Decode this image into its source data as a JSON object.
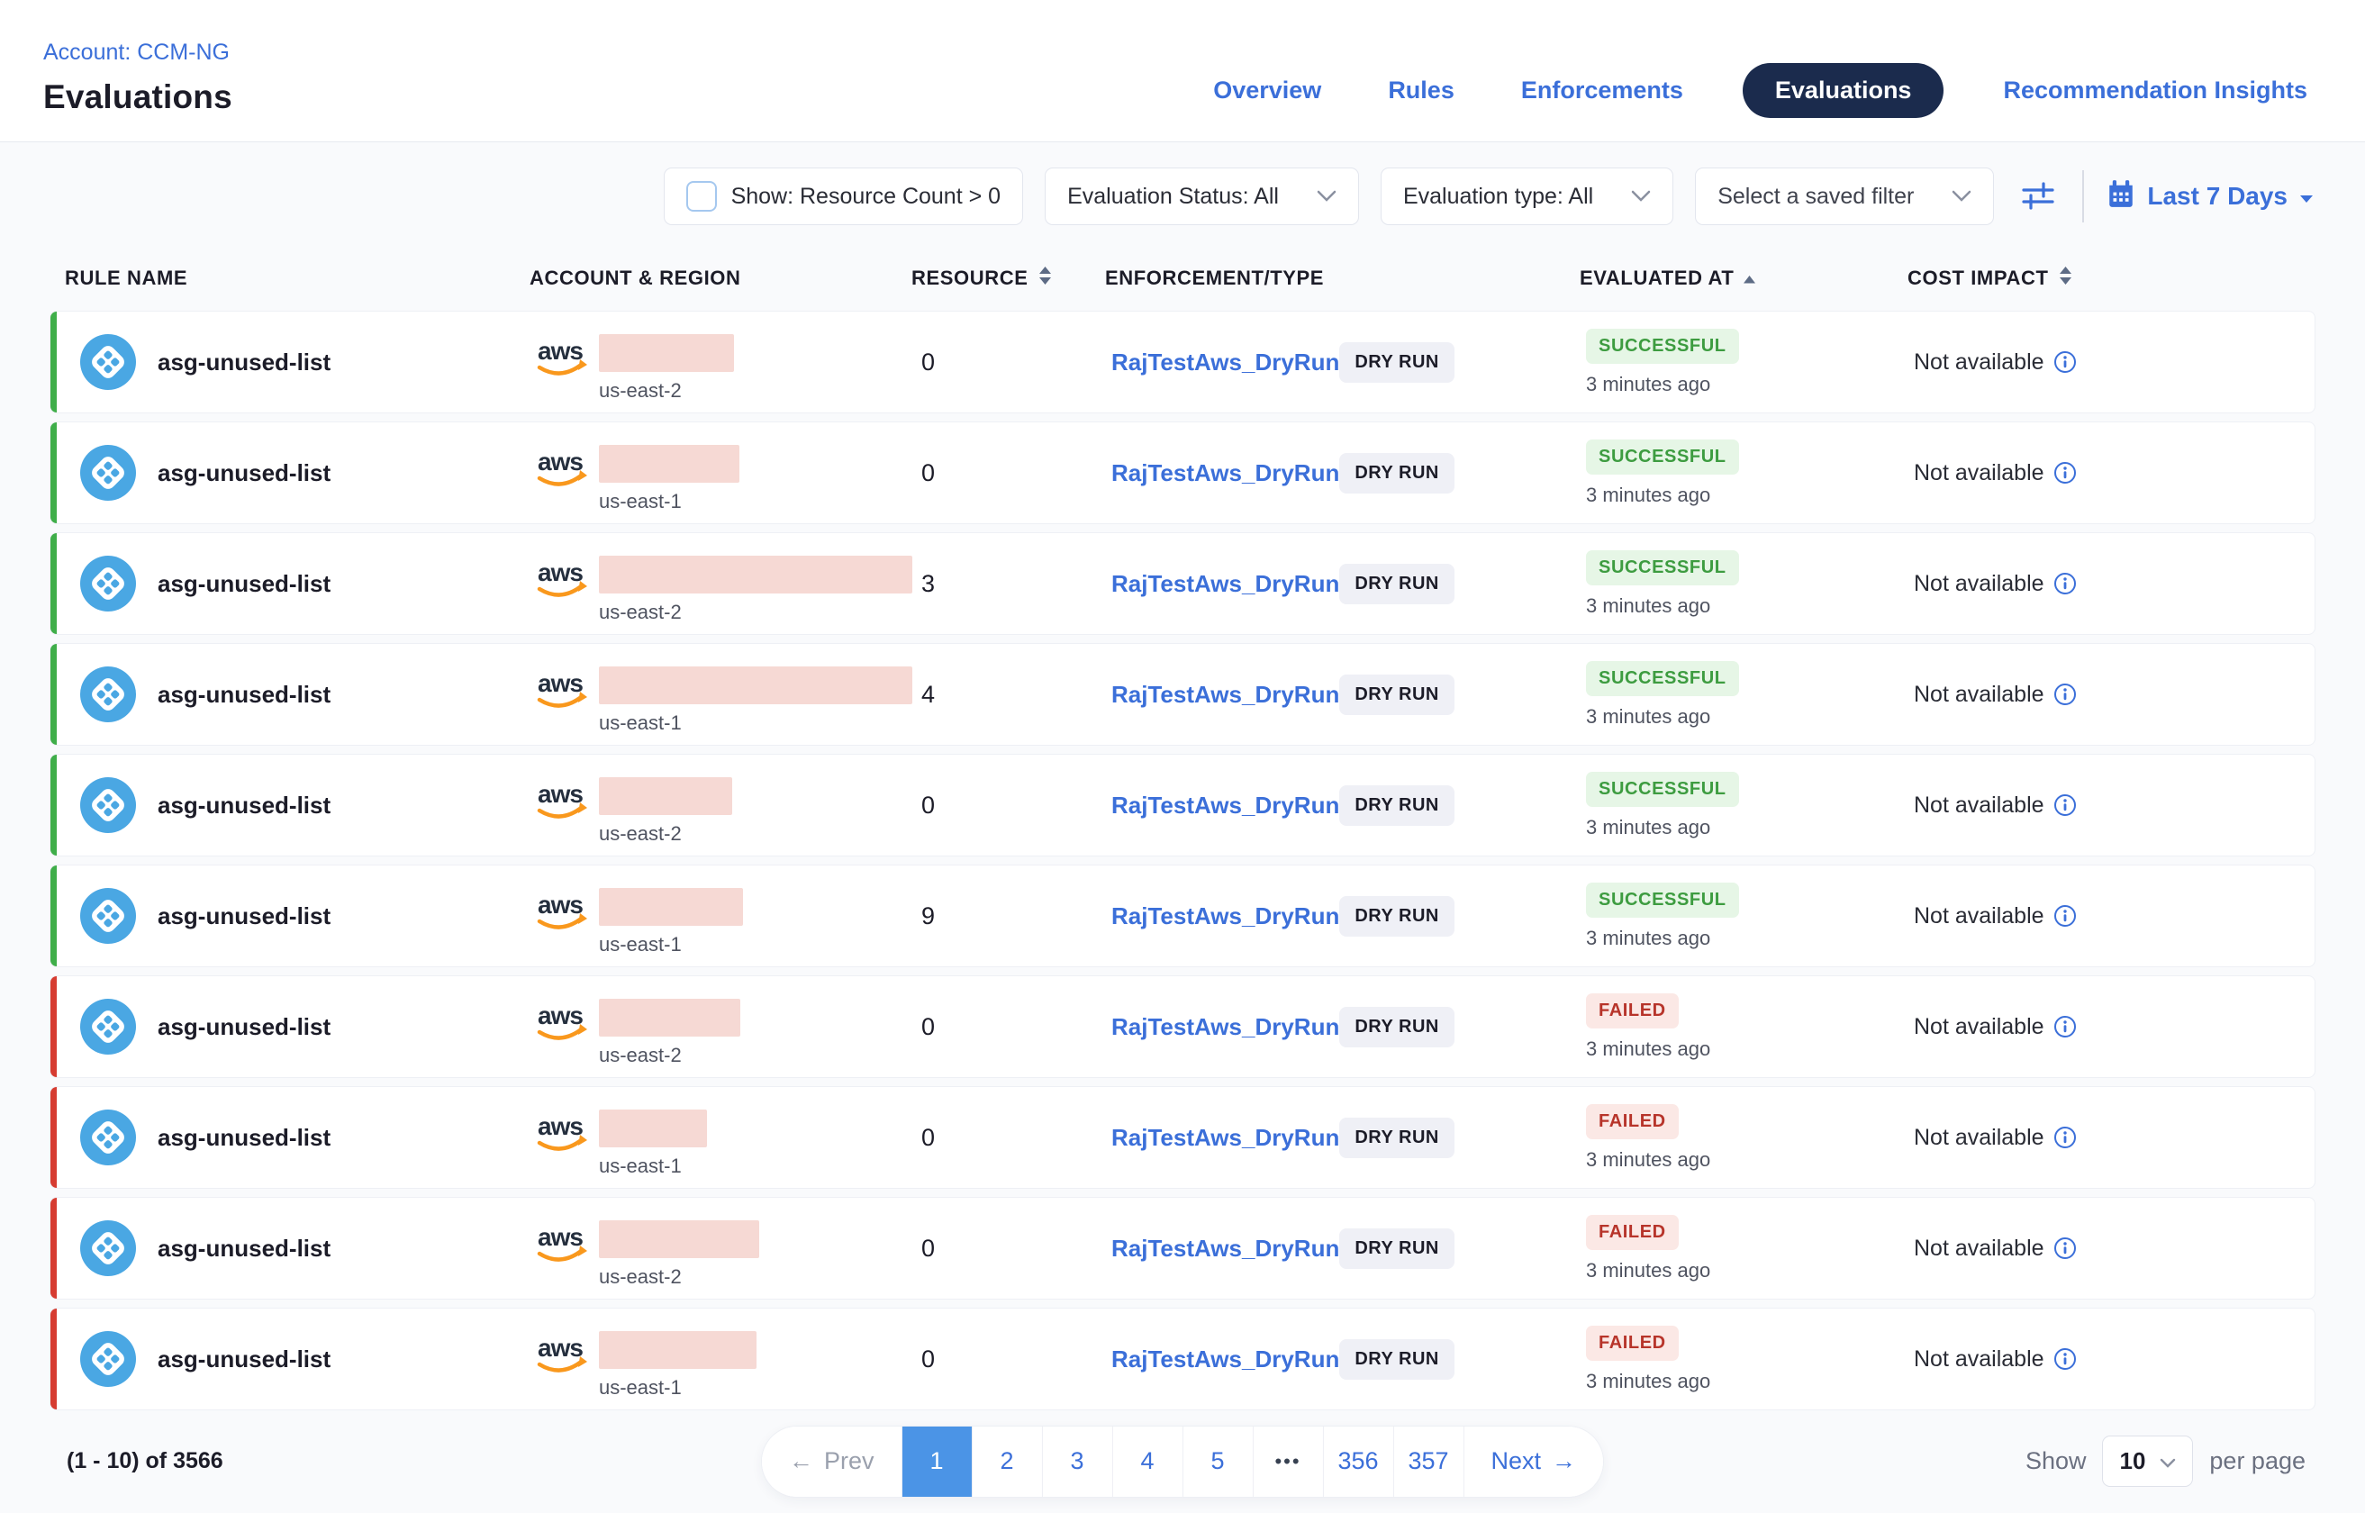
{
  "header": {
    "account_label": "Account: CCM-NG",
    "title": "Evaluations",
    "nav": [
      {
        "label": "Overview",
        "active": false
      },
      {
        "label": "Rules",
        "active": false
      },
      {
        "label": "Enforcements",
        "active": false
      },
      {
        "label": "Evaluations",
        "active": true
      },
      {
        "label": "Recommendation Insights",
        "active": false
      }
    ]
  },
  "toolbar": {
    "show_filter_label": "Show: Resource Count > 0",
    "show_filter_checked": false,
    "status_filter": "Evaluation Status: All",
    "type_filter": "Evaluation type: All",
    "saved_filter_placeholder": "Select a saved filter",
    "date_range": "Last 7 Days"
  },
  "table": {
    "columns": [
      "RULE NAME",
      "ACCOUNT & REGION",
      "RESOURCE",
      "ENFORCEMENT/TYPE",
      "EVALUATED AT",
      "COST IMPACT"
    ],
    "rows": [
      {
        "rule": "asg-unused-list",
        "account_redacted": true,
        "redaction_width": 150,
        "region": "us-east-2",
        "resource": "0",
        "enforcement": "RajTestAws_DryRun",
        "type": "DRY RUN",
        "status": "SUCCESSFUL",
        "outcome": "success",
        "evaluated": "3 minutes ago",
        "cost": "Not available"
      },
      {
        "rule": "asg-unused-list",
        "account_redacted": true,
        "redaction_width": 156,
        "region": "us-east-1",
        "resource": "0",
        "enforcement": "RajTestAws_DryRun",
        "type": "DRY RUN",
        "status": "SUCCESSFUL",
        "outcome": "success",
        "evaluated": "3 minutes ago",
        "cost": "Not available"
      },
      {
        "rule": "asg-unused-list",
        "account_redacted": true,
        "redaction_width": 348,
        "region": "us-east-2",
        "resource": "3",
        "enforcement": "RajTestAws_DryRun",
        "type": "DRY RUN",
        "status": "SUCCESSFUL",
        "outcome": "success",
        "evaluated": "3 minutes ago",
        "cost": "Not available"
      },
      {
        "rule": "asg-unused-list",
        "account_redacted": true,
        "redaction_width": 348,
        "region": "us-east-1",
        "resource": "4",
        "enforcement": "RajTestAws_DryRun",
        "type": "DRY RUN",
        "status": "SUCCESSFUL",
        "outcome": "success",
        "evaluated": "3 minutes ago",
        "cost": "Not available"
      },
      {
        "rule": "asg-unused-list",
        "account_redacted": true,
        "redaction_width": 148,
        "region": "us-east-2",
        "resource": "0",
        "enforcement": "RajTestAws_DryRun",
        "type": "DRY RUN",
        "status": "SUCCESSFUL",
        "outcome": "success",
        "evaluated": "3 minutes ago",
        "cost": "Not available"
      },
      {
        "rule": "asg-unused-list",
        "account_redacted": true,
        "redaction_width": 160,
        "region": "us-east-1",
        "resource": "9",
        "enforcement": "RajTestAws_DryRun",
        "type": "DRY RUN",
        "status": "SUCCESSFUL",
        "outcome": "success",
        "evaluated": "3 minutes ago",
        "cost": "Not available"
      },
      {
        "rule": "asg-unused-list",
        "account_redacted": true,
        "redaction_width": 157,
        "region": "us-east-2",
        "resource": "0",
        "enforcement": "RajTestAws_DryRun",
        "type": "DRY RUN",
        "status": "FAILED",
        "outcome": "failed",
        "evaluated": "3 minutes ago",
        "cost": "Not available"
      },
      {
        "rule": "asg-unused-list",
        "account_redacted": true,
        "redaction_width": 120,
        "region": "us-east-1",
        "resource": "0",
        "enforcement": "RajTestAws_DryRun",
        "type": "DRY RUN",
        "status": "FAILED",
        "outcome": "failed",
        "evaluated": "3 minutes ago",
        "cost": "Not available"
      },
      {
        "rule": "asg-unused-list",
        "account_redacted": true,
        "redaction_width": 178,
        "region": "us-east-2",
        "resource": "0",
        "enforcement": "RajTestAws_DryRun",
        "type": "DRY RUN",
        "status": "FAILED",
        "outcome": "failed",
        "evaluated": "3 minutes ago",
        "cost": "Not available"
      },
      {
        "rule": "asg-unused-list",
        "account_redacted": true,
        "redaction_width": 175,
        "region": "us-east-1",
        "resource": "0",
        "enforcement": "RajTestAws_DryRun",
        "type": "DRY RUN",
        "status": "FAILED",
        "outcome": "failed",
        "evaluated": "3 minutes ago",
        "cost": "Not available"
      }
    ]
  },
  "pagination": {
    "summary": "(1 - 10) of 3566",
    "prev_label": "Prev",
    "next_label": "Next",
    "pages": [
      {
        "label": "1",
        "active": true
      },
      {
        "label": "2",
        "active": false
      },
      {
        "label": "3",
        "active": false
      },
      {
        "label": "4",
        "active": false
      },
      {
        "label": "5",
        "active": false
      },
      {
        "label": "•••",
        "active": false,
        "ellipsis": true
      },
      {
        "label": "356",
        "active": false
      },
      {
        "label": "357",
        "active": false
      }
    ],
    "show_label": "Show",
    "page_size": "10",
    "per_page_label": "per page"
  },
  "colors": {
    "link_blue": "#3b6fd9",
    "active_tab_navy": "#1b2b4d",
    "success_green": "#3fae49",
    "failed_red": "#d63c31",
    "success_badge_bg": "#e6f6e6",
    "failed_badge_bg": "#fbe8e5",
    "redaction_pink": "#f6d9d4",
    "pager_active_blue": "#4b94e6",
    "rule_icon_blue": "#4aa7e3",
    "aws_orange": "#f9981d",
    "aws_navy": "#252f3e"
  }
}
